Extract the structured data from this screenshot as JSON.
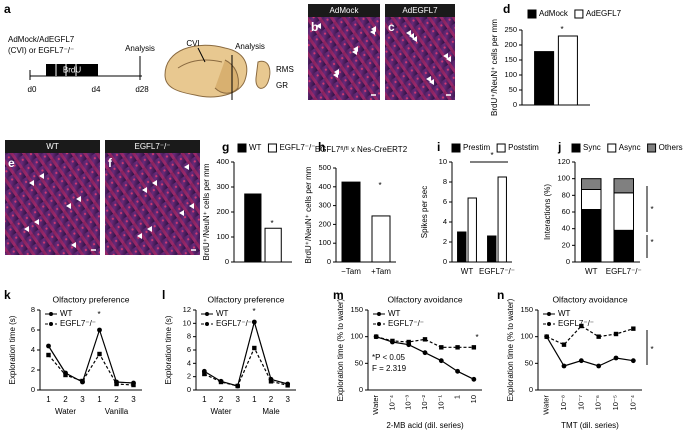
{
  "schematic": {
    "panel": "a",
    "treatment": "AdMock/AdEGFL7",
    "treatment_2": "(CVI) or EGFL7⁻/⁻",
    "label": "BrdU",
    "timepoints": [
      "d0",
      "d4",
      "d28"
    ],
    "analysis": "Analysis",
    "brain_labels": [
      "CVI",
      "Analysis",
      "RMS",
      "GR"
    ]
  },
  "images": [
    {
      "panel": "b",
      "label": "AdMock"
    },
    {
      "panel": "c",
      "label": "AdEGFL7"
    },
    {
      "panel": "e",
      "label": "WT"
    },
    {
      "panel": "f",
      "label": "EGFL7⁻/⁻"
    }
  ],
  "chart_data": [
    {
      "panel": "d",
      "type": "bar",
      "ylabel": "BrdU⁺/NeuN⁺ cells per mm",
      "series": [
        {
          "name": "AdMock",
          "color": "#000000",
          "values": [
            178
          ]
        },
        {
          "name": "AdEGFL7",
          "color": "#ffffff",
          "values": [
            230
          ]
        }
      ],
      "ylim": [
        0,
        250
      ],
      "yticks": [
        0,
        50,
        100,
        150,
        200,
        250
      ],
      "annotations": [
        "*"
      ]
    },
    {
      "panel": "g",
      "type": "bar",
      "ylabel": "BrdU⁺/NeuN⁺ cells per mm",
      "series": [
        {
          "name": "WT",
          "color": "#000000",
          "values": [
            272
          ]
        },
        {
          "name": "EGFL7⁻/⁻",
          "color": "#ffffff",
          "values": [
            135
          ]
        }
      ],
      "ylim": [
        0,
        400
      ],
      "yticks": [
        0,
        100,
        200,
        300,
        400
      ],
      "annotations": [
        "*"
      ]
    },
    {
      "panel": "h",
      "type": "bar",
      "title": "EGFL7ᶠˡ/ᶠˡ x Nes-CreERT2",
      "ylabel": "BrdU⁺/NeuN⁺ cells per mm",
      "categories": [
        "−Tam",
        "+Tam"
      ],
      "values": [
        425,
        245
      ],
      "colors": [
        "#000000",
        "#ffffff"
      ],
      "ylim": [
        0,
        500
      ],
      "yticks": [
        0,
        100,
        200,
        300,
        400,
        500
      ],
      "annotations": [
        "*"
      ]
    },
    {
      "panel": "i",
      "type": "bar",
      "ylabel": "Spikes per sec",
      "categories": [
        "WT",
        "EGFL7⁻/⁻"
      ],
      "series": [
        {
          "name": "Prestim",
          "color": "#000000",
          "values": [
            3.0,
            2.6
          ]
        },
        {
          "name": "Poststim",
          "color": "#ffffff",
          "values": [
            6.4,
            8.5
          ]
        }
      ],
      "ylim": [
        0,
        10
      ],
      "yticks": [
        0,
        2,
        4,
        6,
        8,
        10
      ],
      "annotations": [
        "*"
      ]
    },
    {
      "panel": "j",
      "type": "stacked_bar",
      "ylabel": "Interactions (%)",
      "categories": [
        "WT",
        "EGFL7⁻/⁻"
      ],
      "series": [
        {
          "name": "Sync",
          "color": "#000000",
          "values": [
            63,
            38
          ]
        },
        {
          "name": "Async",
          "color": "#ffffff",
          "values": [
            24,
            45
          ]
        },
        {
          "name": "Others",
          "color": "#808080",
          "values": [
            13,
            17
          ]
        }
      ],
      "ylim": [
        0,
        120
      ],
      "yticks": [
        0,
        20,
        40,
        60,
        80,
        100,
        120
      ],
      "annotations": [
        "*",
        "*"
      ]
    },
    {
      "panel": "k",
      "type": "line",
      "title": "Olfactory preference",
      "ylabel": "Exploration time (s)",
      "categories": [
        "1",
        "2",
        "3",
        "1",
        "2",
        "3"
      ],
      "x_groups": [
        "Water",
        "Vanilla"
      ],
      "series": [
        {
          "name": "WT",
          "color": "#000000",
          "line_style": "solid",
          "marker": "circle",
          "values": [
            4.4,
            1.7,
            0.8,
            6.0,
            0.8,
            0.7
          ]
        },
        {
          "name": "EGFL7⁻/⁻",
          "color": "#000000",
          "line_style": "dashed",
          "marker": "square",
          "values": [
            3.5,
            1.5,
            0.9,
            3.6,
            0.6,
            0.5
          ]
        }
      ],
      "ylim": [
        0,
        8
      ],
      "yticks": [
        0,
        2,
        4,
        6,
        8
      ],
      "annotations": [
        "*"
      ]
    },
    {
      "panel": "l",
      "type": "line",
      "title": "Olfactory preference",
      "ylabel": "Exploration time (s)",
      "categories": [
        "1",
        "2",
        "3",
        "1",
        "2",
        "3"
      ],
      "x_groups": [
        "Water",
        "Male"
      ],
      "series": [
        {
          "name": "WT",
          "color": "#000000",
          "line_style": "solid",
          "marker": "circle",
          "values": [
            2.8,
            1.3,
            0.6,
            10.2,
            1.6,
            0.9
          ]
        },
        {
          "name": "EGFL7⁻/⁻",
          "color": "#000000",
          "line_style": "dashed",
          "marker": "square",
          "values": [
            2.4,
            1.2,
            0.6,
            6.3,
            1.3,
            0.7
          ]
        }
      ],
      "ylim": [
        0,
        12
      ],
      "yticks": [
        0,
        2,
        4,
        6,
        8,
        10,
        12
      ],
      "annotations": [
        "*"
      ]
    },
    {
      "panel": "m",
      "type": "line",
      "title": "Olfactory avoidance",
      "ylabel": "Exploration time (% to water)",
      "xlabel": "2-MB acid (dil. series)",
      "categories": [
        "Water",
        "10⁻⁴",
        "10⁻³",
        "10⁻²",
        "10⁻¹",
        "1",
        "10"
      ],
      "series": [
        {
          "name": "WT",
          "color": "#000000",
          "line_style": "solid",
          "marker": "circle",
          "values": [
            100,
            90,
            85,
            70,
            55,
            35,
            20
          ]
        },
        {
          "name": "EGFL7⁻/⁻",
          "color": "#000000",
          "line_style": "dashed",
          "marker": "square",
          "values": [
            100,
            92,
            90,
            95,
            80,
            80,
            80
          ]
        }
      ],
      "ylim": [
        0,
        150
      ],
      "yticks": [
        0,
        50,
        100,
        150
      ],
      "annotations": [
        "*P < 0.05",
        "F = 2.319",
        "*"
      ]
    },
    {
      "panel": "n",
      "type": "line",
      "title": "Olfactory avoidance",
      "ylabel": "Exploration time (% to water)",
      "xlabel": "TMT (dil. series)",
      "categories": [
        "Water",
        "10⁻⁸",
        "10⁻⁷",
        "10⁻⁶",
        "10⁻⁵",
        "10⁻⁴"
      ],
      "series": [
        {
          "name": "WT",
          "color": "#000000",
          "line_style": "solid",
          "marker": "circle",
          "values": [
            100,
            45,
            55,
            45,
            60,
            55
          ]
        },
        {
          "name": "EGFL7⁻/⁻",
          "color": "#000000",
          "line_style": "dashed",
          "marker": "square",
          "values": [
            100,
            85,
            120,
            100,
            105,
            115
          ]
        }
      ],
      "ylim": [
        0,
        150
      ],
      "yticks": [
        0,
        50,
        100,
        150
      ],
      "annotations": [
        "*"
      ]
    }
  ]
}
